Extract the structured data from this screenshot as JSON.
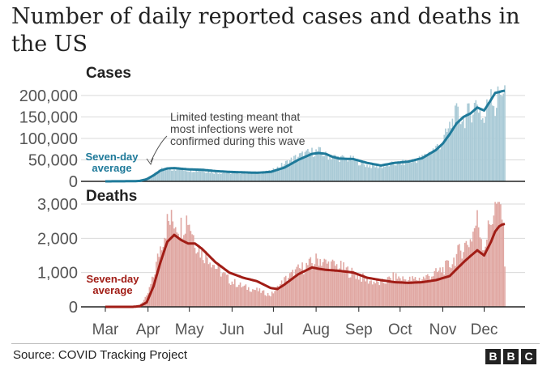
{
  "chart_data": [
    {
      "type": "bar+line",
      "panel_label": "Cases",
      "title": "Number of daily reported cases and deaths in the US",
      "xlabel": "",
      "ylabel": "",
      "ylim": [
        0,
        230000
      ],
      "yticks": [
        0,
        50000,
        100000,
        150000,
        200000
      ],
      "ytick_labels": [
        "0",
        "50,000",
        "100,000",
        "150,000",
        "200,000"
      ],
      "grid": true,
      "x_range_days": [
        0,
        290
      ],
      "series": [
        {
          "name": "Daily cases",
          "kind": "bars",
          "x_day": [
            0,
            10,
            20,
            25,
            30,
            35,
            40,
            50,
            60,
            70,
            80,
            90,
            100,
            110,
            120,
            130,
            140,
            150,
            155,
            160,
            170,
            180,
            190,
            200,
            210,
            220,
            230,
            240,
            245,
            250,
            255,
            260,
            265,
            270,
            275,
            280,
            283,
            286,
            288,
            290
          ],
          "values": [
            200,
            300,
            400,
            2000,
            7000,
            15000,
            28000,
            30000,
            27000,
            26000,
            21000,
            20000,
            21000,
            20000,
            23000,
            42000,
            60000,
            70000,
            72000,
            62000,
            56000,
            52000,
            38000,
            35000,
            42000,
            46000,
            56000,
            80000,
            95000,
            130000,
            160000,
            150000,
            165000,
            190000,
            140000,
            230000,
            170000,
            215000,
            225000,
            215000
          ]
        },
        {
          "name": "Seven-day average",
          "kind": "line",
          "x_day": [
            0,
            10,
            20,
            25,
            30,
            35,
            40,
            45,
            50,
            60,
            70,
            80,
            90,
            100,
            110,
            120,
            130,
            140,
            150,
            155,
            160,
            165,
            170,
            180,
            190,
            200,
            210,
            220,
            230,
            240,
            245,
            250,
            255,
            260,
            265,
            270,
            275,
            280,
            283,
            286,
            288,
            290
          ],
          "values": [
            0,
            200,
            400,
            1000,
            5000,
            14000,
            25000,
            30000,
            31000,
            28000,
            27000,
            24000,
            22000,
            21000,
            20000,
            22000,
            32000,
            50000,
            64000,
            66000,
            64000,
            57000,
            53000,
            52000,
            43000,
            37000,
            43000,
            46000,
            54000,
            73000,
            88000,
            110000,
            135000,
            150000,
            158000,
            172000,
            165000,
            190000,
            206000,
            208000,
            210000,
            211000
          ]
        }
      ],
      "x_tick_labels": [
        "Mar",
        "Apr",
        "May",
        "Jun",
        "Jul",
        "Aug",
        "Sep",
        "Oct",
        "Nov",
        "Dec"
      ],
      "x_tick_days": [
        0,
        31,
        61,
        92,
        122,
        153,
        184,
        214,
        245,
        275
      ],
      "annotations": {
        "average_label_line1": "Seven-day",
        "average_label_line2": "average",
        "note_line1": "Limited testing meant that",
        "note_line2": "most infections were not",
        "note_line3": "confirmed during this wave"
      },
      "colors": {
        "bars": "#a9cad6",
        "line": "#1f7a9a",
        "grid": "#d9d9d9"
      }
    },
    {
      "type": "bar+line",
      "panel_label": "Deaths",
      "xlabel": "",
      "ylabel": "",
      "ylim": [
        0,
        3000
      ],
      "yticks": [
        0,
        1000,
        2000,
        3000
      ],
      "ytick_labels": [
        "0",
        "1,000",
        "2,000",
        "3,000"
      ],
      "grid": true,
      "x_range_days": [
        0,
        290
      ],
      "series": [
        {
          "name": "Daily deaths",
          "kind": "bars",
          "x_day": [
            0,
            10,
            20,
            25,
            30,
            35,
            40,
            45,
            50,
            55,
            60,
            65,
            70,
            75,
            80,
            90,
            100,
            110,
            120,
            130,
            140,
            150,
            155,
            160,
            170,
            180,
            190,
            200,
            210,
            220,
            230,
            240,
            250,
            260,
            265,
            270,
            275,
            280,
            283,
            286,
            288,
            290
          ],
          "values": [
            0,
            0,
            10,
            60,
            300,
            900,
            1800,
            2500,
            2600,
            2400,
            2700,
            2000,
            1600,
            1500,
            1200,
            800,
            600,
            500,
            350,
            800,
            1100,
            1300,
            1450,
            1300,
            1200,
            1000,
            800,
            700,
            900,
            800,
            850,
            1000,
            1250,
            1800,
            2000,
            2600,
            1800,
            2600,
            3000,
            3200,
            2800,
            1450
          ]
        },
        {
          "name": "Seven-day average",
          "kind": "line",
          "x_day": [
            0,
            20,
            25,
            30,
            35,
            40,
            45,
            50,
            55,
            60,
            65,
            70,
            80,
            90,
            100,
            110,
            120,
            125,
            130,
            140,
            150,
            155,
            160,
            170,
            180,
            190,
            200,
            210,
            220,
            230,
            240,
            250,
            255,
            260,
            265,
            270,
            275,
            280,
            283,
            286,
            288,
            290
          ],
          "values": [
            0,
            0,
            20,
            130,
            600,
            1300,
            1900,
            2100,
            1950,
            1850,
            1850,
            1700,
            1300,
            1000,
            850,
            750,
            550,
            520,
            650,
            950,
            1150,
            1110,
            1080,
            1050,
            1000,
            850,
            780,
            720,
            700,
            720,
            780,
            900,
            1100,
            1300,
            1480,
            1650,
            1500,
            1900,
            2200,
            2350,
            2400,
            2420
          ]
        }
      ],
      "x_tick_labels": [
        "Mar",
        "Apr",
        "May",
        "Jun",
        "Jul",
        "Aug",
        "Sep",
        "Oct",
        "Nov",
        "Dec"
      ],
      "x_tick_days": [
        0,
        31,
        61,
        92,
        122,
        153,
        184,
        214,
        245,
        275
      ],
      "annotations": {
        "average_label_line1": "Seven-day",
        "average_label_line2": "average"
      },
      "colors": {
        "bars": "#e0a7a2",
        "line": "#a11d16",
        "grid": "#d9d9d9"
      }
    }
  ],
  "header": {
    "title": "Number of daily reported cases and deaths in the US"
  },
  "footer": {
    "source": "Source: COVID Tracking Project",
    "logo_letters": [
      "B",
      "B",
      "C"
    ]
  }
}
